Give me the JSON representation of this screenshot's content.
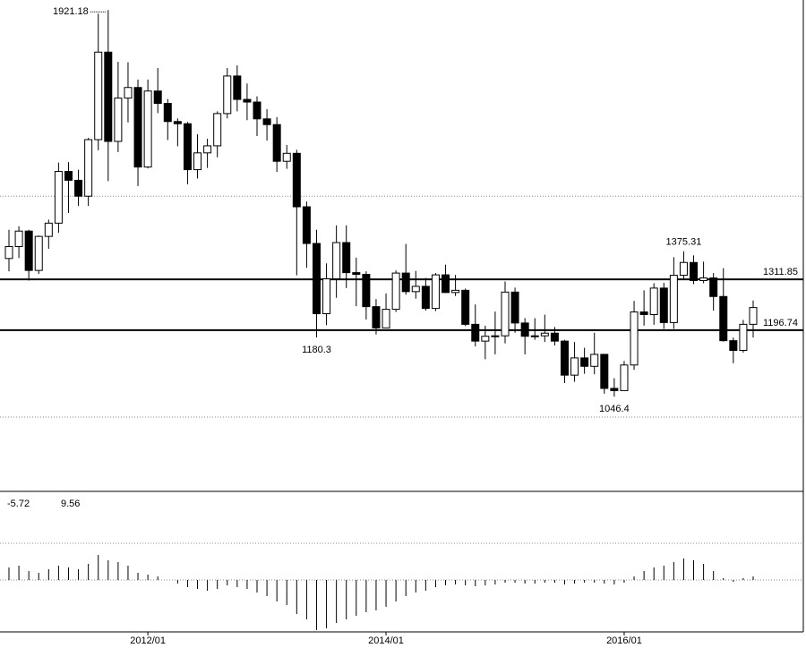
{
  "chart_data": {
    "type": "candlestick",
    "categories": [
      null,
      null,
      null,
      null,
      null,
      null,
      null,
      null,
      null,
      null,
      null,
      null,
      null,
      null,
      "2012/01",
      null,
      null,
      null,
      null,
      null,
      null,
      null,
      null,
      null,
      null,
      null,
      null,
      null,
      null,
      null,
      null,
      null,
      null,
      null,
      null,
      null,
      null,
      null,
      "2014/01",
      null,
      null,
      null,
      null,
      null,
      null,
      null,
      null,
      null,
      null,
      null,
      null,
      null,
      null,
      null,
      null,
      null,
      null,
      null,
      null,
      null,
      null,
      null,
      "2016/01",
      null,
      null,
      null,
      null,
      null,
      null,
      null,
      null,
      null,
      null,
      null,
      null,
      null
    ],
    "ohlc": [
      [
        1359,
        1424,
        1330,
        1386
      ],
      [
        1386,
        1432,
        1360,
        1421
      ],
      [
        1421,
        1424,
        1309,
        1332
      ],
      [
        1332,
        1411,
        1324,
        1409
      ],
      [
        1409,
        1447,
        1381,
        1439
      ],
      [
        1439,
        1576,
        1417,
        1556
      ],
      [
        1556,
        1577,
        1462,
        1536
      ],
      [
        1536,
        1560,
        1478,
        1500
      ],
      [
        1500,
        1632,
        1478,
        1628
      ],
      [
        1628,
        1913,
        1604,
        1826
      ],
      [
        1826,
        1921.18,
        1534,
        1624
      ],
      [
        1624,
        1804,
        1600,
        1722
      ],
      [
        1722,
        1803,
        1667,
        1746
      ],
      [
        1746,
        1764,
        1523,
        1566
      ],
      [
        1566,
        1764,
        1563,
        1738
      ],
      [
        1738,
        1790,
        1688,
        1710
      ],
      [
        1710,
        1720,
        1627,
        1669
      ],
      [
        1669,
        1676,
        1613,
        1664
      ],
      [
        1664,
        1668,
        1527,
        1560
      ],
      [
        1560,
        1640,
        1540,
        1598
      ],
      [
        1598,
        1630,
        1564,
        1614
      ],
      [
        1614,
        1692,
        1588,
        1687
      ],
      [
        1687,
        1790,
        1676,
        1772
      ],
      [
        1772,
        1796,
        1692,
        1719
      ],
      [
        1719,
        1755,
        1672,
        1713
      ],
      [
        1713,
        1726,
        1636,
        1675
      ],
      [
        1675,
        1697,
        1626,
        1662
      ],
      [
        1662,
        1679,
        1555,
        1579
      ],
      [
        1579,
        1616,
        1562,
        1597
      ],
      [
        1597,
        1605,
        1321,
        1476
      ],
      [
        1476,
        1488,
        1338,
        1393
      ],
      [
        1393,
        1424,
        1180.3,
        1234
      ],
      [
        1234,
        1348,
        1208,
        1313
      ],
      [
        1313,
        1434,
        1270,
        1395
      ],
      [
        1395,
        1434,
        1292,
        1327
      ],
      [
        1327,
        1361,
        1251,
        1323
      ],
      [
        1323,
        1330,
        1221,
        1250
      ],
      [
        1250,
        1267,
        1187,
        1202
      ],
      [
        1202,
        1280,
        1202,
        1244
      ],
      [
        1244,
        1332,
        1238,
        1326
      ],
      [
        1326,
        1392,
        1277,
        1284
      ],
      [
        1284,
        1331,
        1268,
        1296
      ],
      [
        1296,
        1315,
        1241,
        1246
      ],
      [
        1246,
        1326,
        1240,
        1322
      ],
      [
        1322,
        1345,
        1281,
        1282
      ],
      [
        1282,
        1322,
        1274,
        1287
      ],
      [
        1287,
        1291,
        1206,
        1210
      ],
      [
        1210,
        1255,
        1160,
        1172
      ],
      [
        1172,
        1207,
        1131,
        1183
      ],
      [
        1183,
        1239,
        1142,
        1184
      ],
      [
        1184,
        1307,
        1167,
        1283
      ],
      [
        1283,
        1293,
        1191,
        1213
      ],
      [
        1213,
        1224,
        1142,
        1183
      ],
      [
        1183,
        1224,
        1175,
        1184
      ],
      [
        1184,
        1232,
        1170,
        1190
      ],
      [
        1190,
        1204,
        1162,
        1172
      ],
      [
        1172,
        1175,
        1077,
        1095
      ],
      [
        1095,
        1170,
        1080,
        1134
      ],
      [
        1134,
        1157,
        1098,
        1115
      ],
      [
        1115,
        1191,
        1097,
        1142
      ],
      [
        1142,
        1143,
        1053,
        1065
      ],
      [
        1065,
        1088,
        1046.4,
        1060
      ],
      [
        1060,
        1127,
        1061,
        1118
      ],
      [
        1118,
        1263,
        1107,
        1238
      ],
      [
        1238,
        1287,
        1207,
        1232
      ],
      [
        1232,
        1303,
        1209,
        1292
      ],
      [
        1292,
        1304,
        1200,
        1214
      ],
      [
        1214,
        1362,
        1200,
        1321
      ],
      [
        1321,
        1375.31,
        1311,
        1350
      ],
      [
        1350,
        1366,
        1301,
        1309
      ],
      [
        1309,
        1352,
        1303,
        1315
      ],
      [
        1315,
        1326,
        1241,
        1273
      ],
      [
        1273,
        1337,
        1171,
        1173
      ],
      [
        1173,
        1180,
        1122,
        1151
      ],
      [
        1151,
        1220,
        1146,
        1210
      ],
      [
        1210,
        1264,
        1180,
        1248
      ]
    ],
    "ylim": [
      834,
      1944
    ],
    "gridlines": [
      1500,
      1000
    ],
    "levels": [
      1311.85,
      1196.74
    ],
    "annotations": [
      1921.18,
      1180.3,
      1046.4,
      1375.31
    ],
    "macd_labels": [
      "-5.72",
      "9.56"
    ],
    "macd_hist": [
      14,
      16,
      10,
      8,
      12,
      16,
      14,
      12,
      18,
      28,
      22,
      20,
      16,
      8,
      6,
      4,
      0,
      -4,
      -8,
      -10,
      -12,
      -10,
      -6,
      -8,
      -10,
      -14,
      -18,
      -24,
      -28,
      -38,
      -44,
      -56,
      -54,
      -48,
      -44,
      -40,
      -36,
      -34,
      -30,
      -24,
      -18,
      -14,
      -12,
      -8,
      -6,
      -5,
      -6,
      -7,
      -6,
      -5,
      -3,
      -3,
      -4,
      -4,
      -3,
      -3,
      -5,
      -4,
      -3,
      -3,
      -4,
      -5,
      -3,
      4,
      10,
      14,
      16,
      20,
      24,
      22,
      18,
      10,
      2,
      -2,
      2,
      4
    ],
    "macd_ylim": [
      -57,
      96
    ],
    "macd_gridlines": [
      41
    ]
  }
}
